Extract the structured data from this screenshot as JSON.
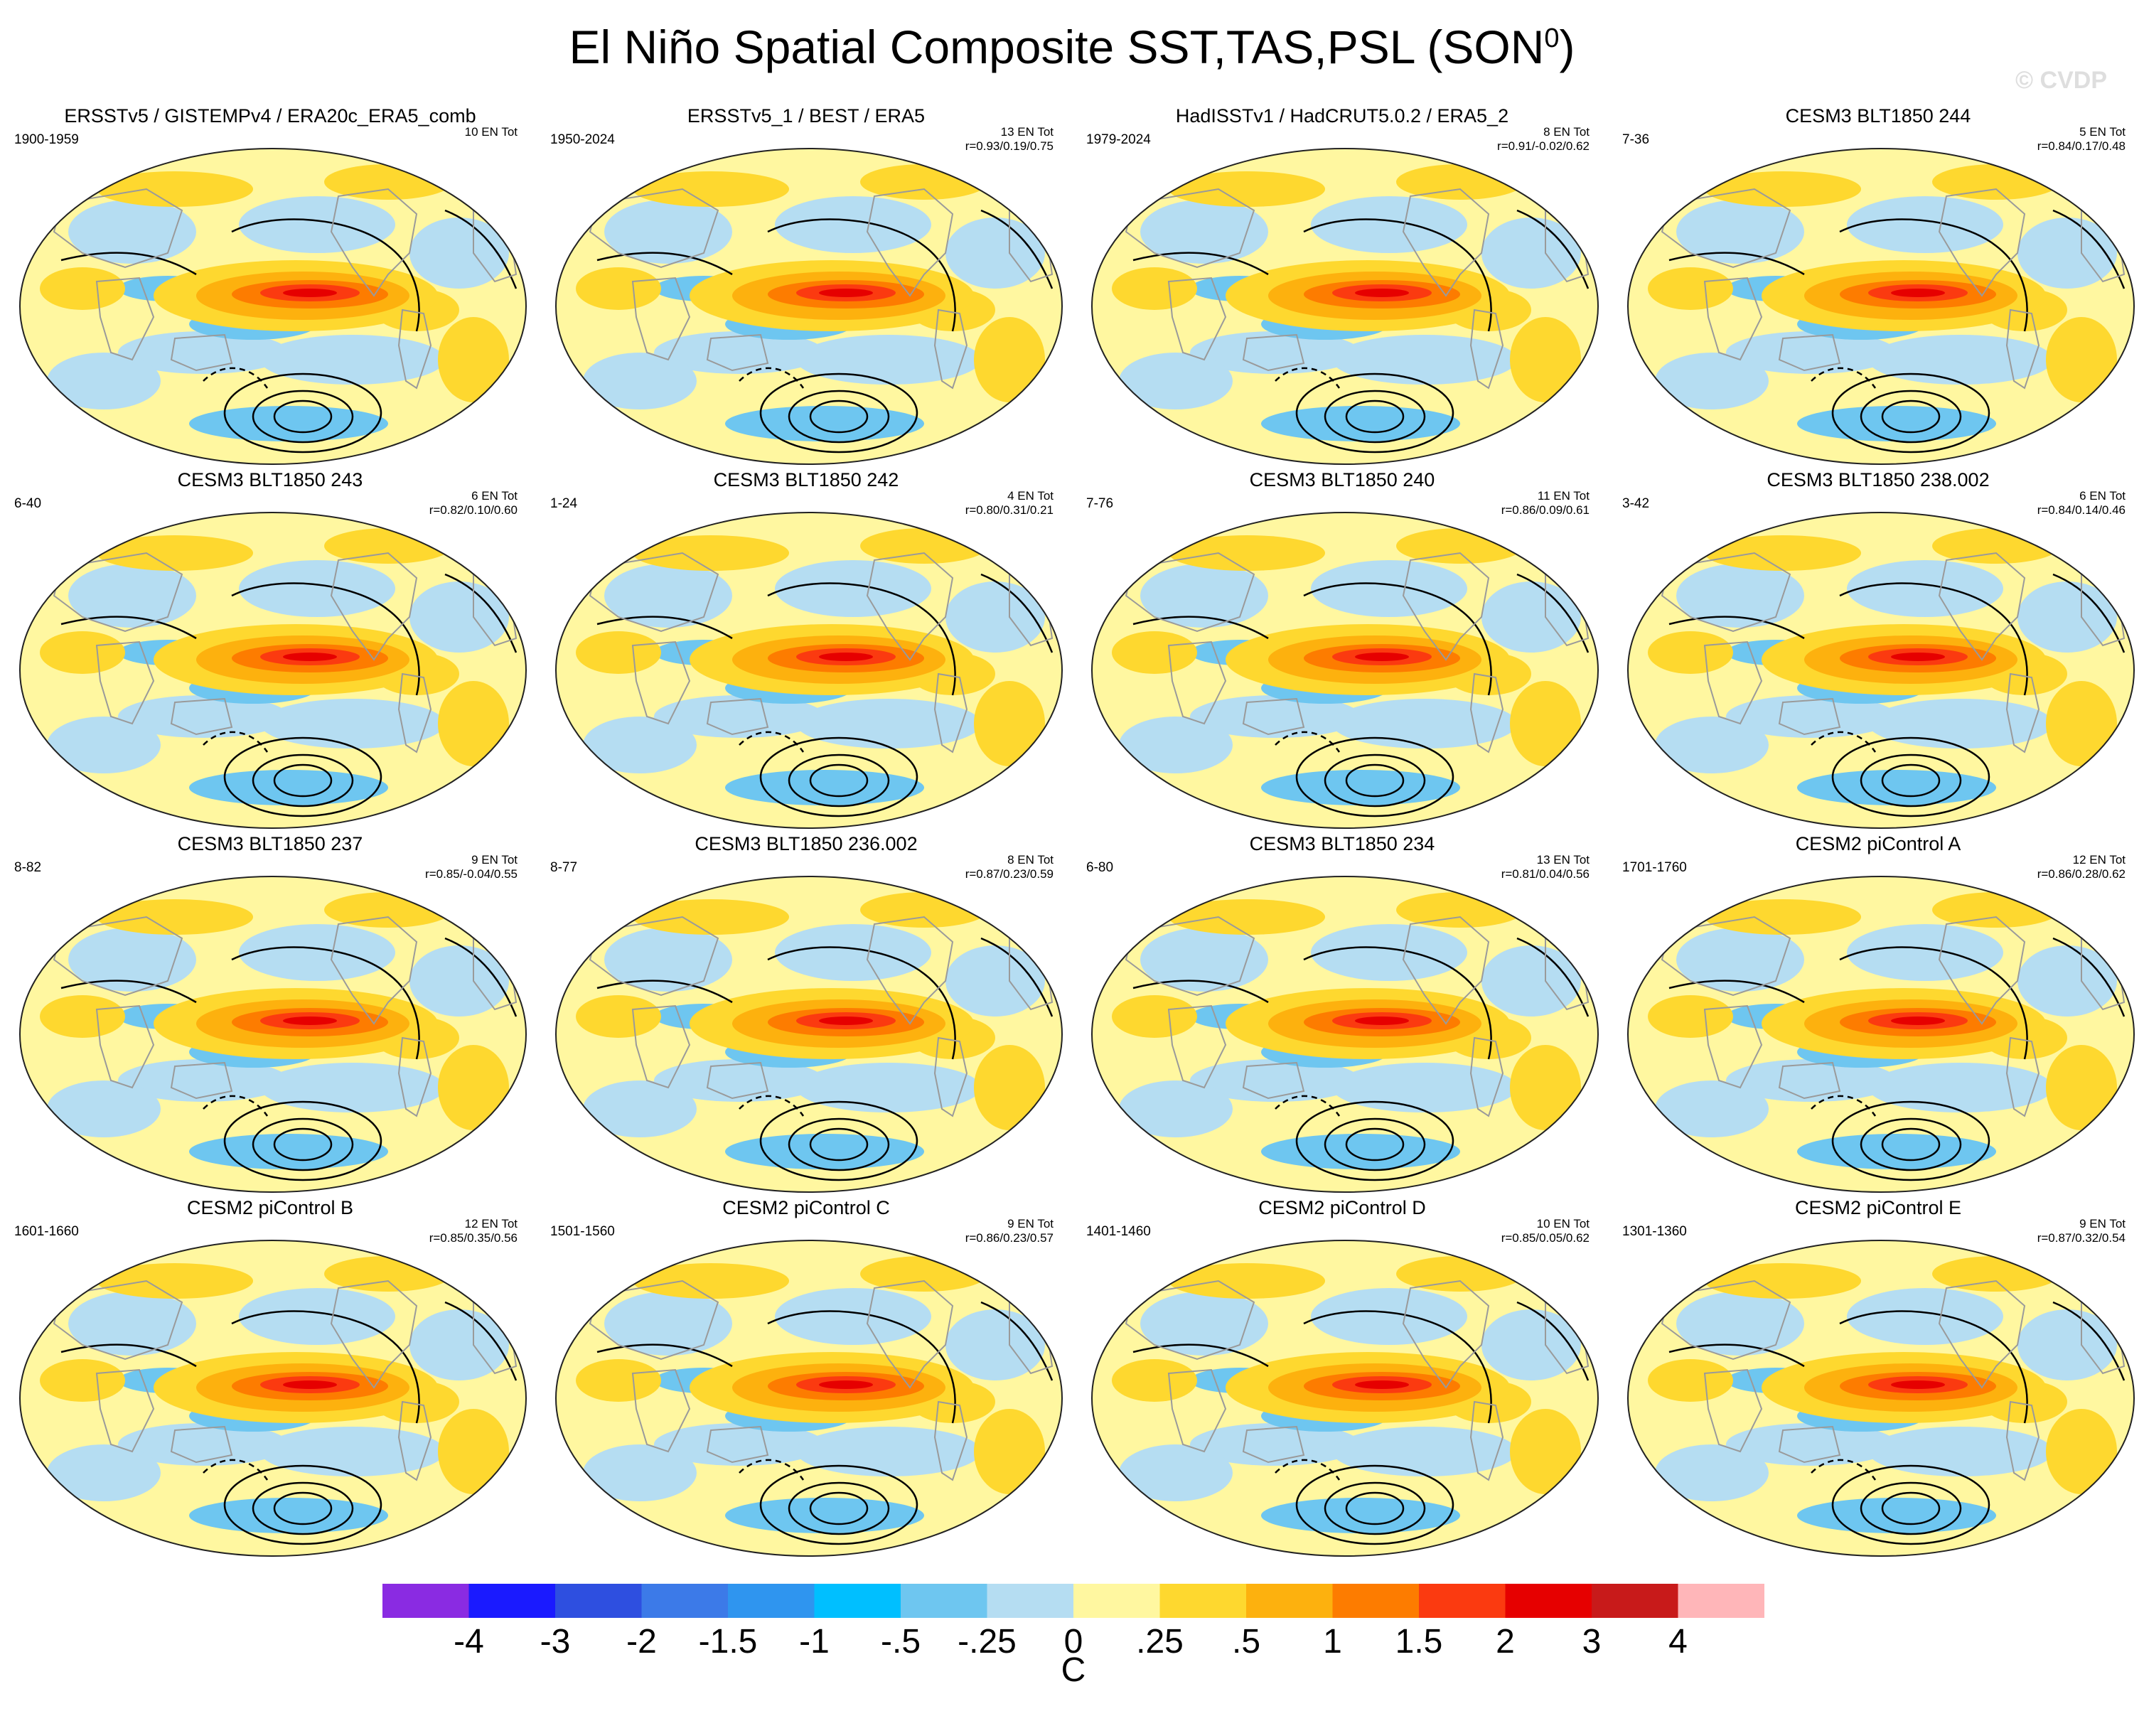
{
  "title": "El Niño Spatial Composite SST,TAS,PSL (SON",
  "title_superscript": "0",
  "title_close": ")",
  "watermark": "© CVDP",
  "panels": [
    {
      "title": "ERSSTv5 / GISTEMPv4 / ERA20c_ERA5_comb",
      "years": "1900-1959",
      "count": "10 EN Tot",
      "stats": ""
    },
    {
      "title": "ERSSTv5_1 / BEST / ERA5",
      "years": "1950-2024",
      "count": "13 EN Tot",
      "stats": "r=0.93/0.19/0.75"
    },
    {
      "title": "HadISSTv1 / HadCRUT5.0.2 / ERA5_2",
      "years": "1979-2024",
      "count": "8 EN Tot",
      "stats": "r=0.91/-0.02/0.62"
    },
    {
      "title": "CESM3 BLT1850 244",
      "years": "7-36",
      "count": "5 EN Tot",
      "stats": "r=0.84/0.17/0.48"
    },
    {
      "title": "CESM3 BLT1850 243",
      "years": "6-40",
      "count": "6 EN Tot",
      "stats": "r=0.82/0.10/0.60"
    },
    {
      "title": "CESM3 BLT1850 242",
      "years": "1-24",
      "count": "4 EN Tot",
      "stats": "r=0.80/0.31/0.21"
    },
    {
      "title": "CESM3 BLT1850 240",
      "years": "7-76",
      "count": "11 EN Tot",
      "stats": "r=0.86/0.09/0.61"
    },
    {
      "title": "CESM3 BLT1850 238.002",
      "years": "3-42",
      "count": "6 EN Tot",
      "stats": "r=0.84/0.14/0.46"
    },
    {
      "title": "CESM3 BLT1850 237",
      "years": "8-82",
      "count": "9 EN Tot",
      "stats": "r=0.85/-0.04/0.55"
    },
    {
      "title": "CESM3 BLT1850 236.002",
      "years": "8-77",
      "count": "8 EN Tot",
      "stats": "r=0.87/0.23/0.59"
    },
    {
      "title": "CESM3 BLT1850 234",
      "years": "6-80",
      "count": "13 EN Tot",
      "stats": "r=0.81/0.04/0.56"
    },
    {
      "title": "CESM2 piControl A",
      "years": "1701-1760",
      "count": "12 EN Tot",
      "stats": "r=0.86/0.28/0.62"
    },
    {
      "title": "CESM2 piControl B",
      "years": "1601-1660",
      "count": "12 EN Tot",
      "stats": "r=0.85/0.35/0.56"
    },
    {
      "title": "CESM2 piControl C",
      "years": "1501-1560",
      "count": "9 EN Tot",
      "stats": "r=0.86/0.23/0.57"
    },
    {
      "title": "CESM2 piControl D",
      "years": "1401-1460",
      "count": "10 EN Tot",
      "stats": "r=0.85/0.05/0.62"
    },
    {
      "title": "CESM2 piControl E",
      "years": "1301-1360",
      "count": "9 EN Tot",
      "stats": "r=0.87/0.32/0.54"
    }
  ],
  "colorbar": {
    "colors": [
      "#8a2be2",
      "#1a1aff",
      "#2e4fe0",
      "#3c7ae8",
      "#2f95ef",
      "#00bfff",
      "#6ec6f0",
      "#b5ddf2",
      "#fff7a0",
      "#fed82f",
      "#fdb10e",
      "#fd7c00",
      "#fb3a10",
      "#e60000",
      "#c81a1a",
      "#ffb6b9"
    ],
    "labels": [
      "-4",
      "-3",
      "-2",
      "-1.5",
      "-1",
      "-.5",
      "-.25",
      "0",
      ".25",
      ".5",
      "1",
      "1.5",
      "2",
      "3",
      "4"
    ],
    "unit": "C"
  }
}
